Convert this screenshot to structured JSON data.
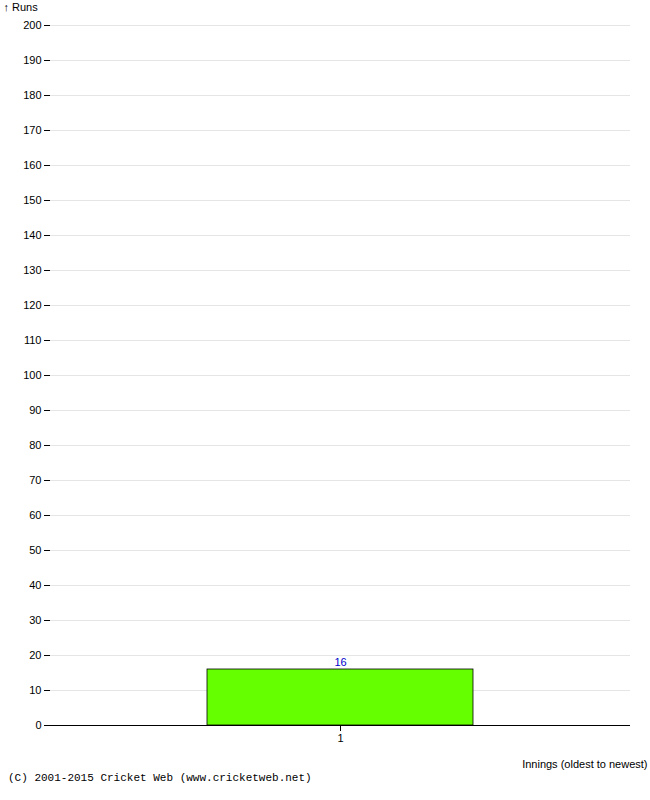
{
  "chart_data": {
    "type": "bar",
    "xlabel": "Innings (oldest to newest)",
    "ylabel": "Runs",
    "categories": [
      "1"
    ],
    "values": [
      16
    ],
    "color": "#66ff00",
    "ylim": [
      0,
      200
    ],
    "yticks": [
      0,
      10,
      20,
      30,
      40,
      50,
      60,
      70,
      80,
      90,
      100,
      110,
      120,
      130,
      140,
      150,
      160,
      170,
      180,
      190,
      200
    ],
    "grid": true,
    "data_labels": true,
    "caption": "(C) 2001-2015 Cricket Web (www.cricketweb.net)"
  }
}
